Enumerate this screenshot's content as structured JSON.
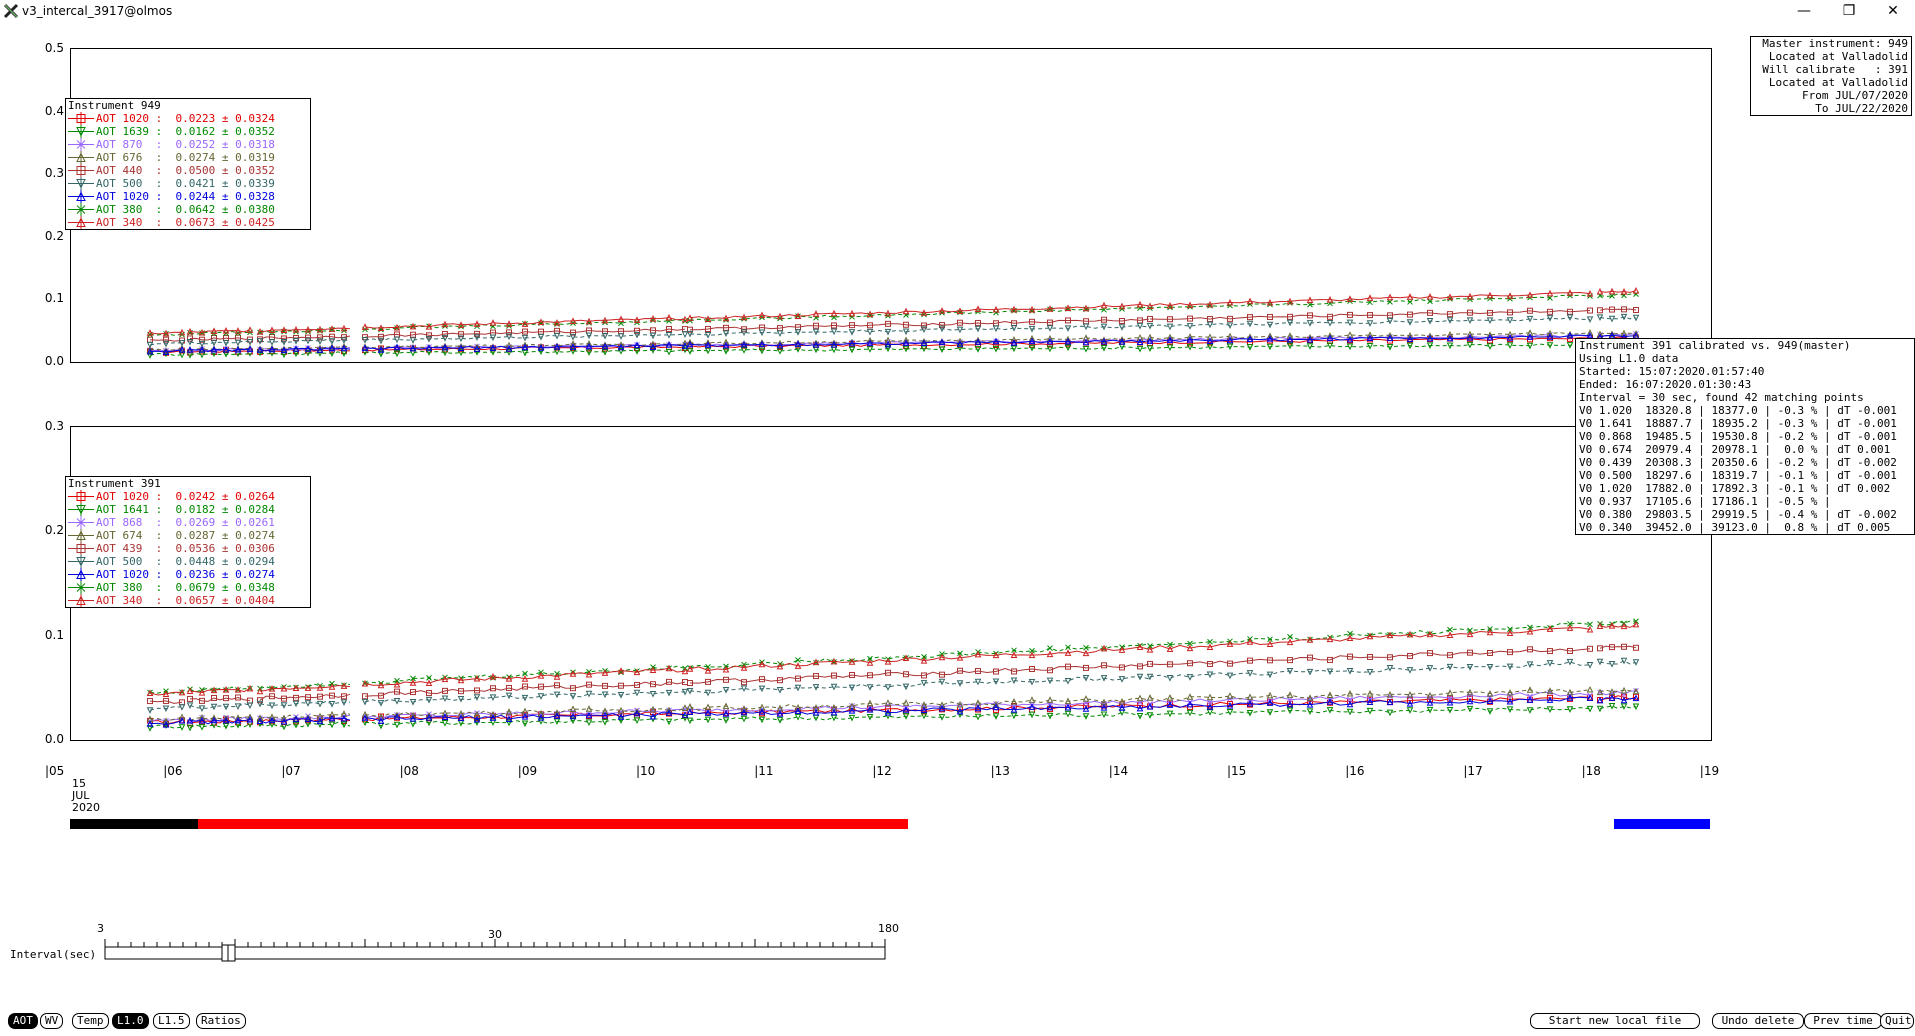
{
  "window": {
    "title": "v3_intercal_3917@olmos",
    "minimize": "—",
    "restore": "❐",
    "close": "✕"
  },
  "top_chart": {
    "yticks": [
      "0.5",
      "0.4",
      "0.3",
      "0.2",
      "0.1",
      "0.0"
    ],
    "legend_title": "Instrument 949",
    "legend": [
      {
        "label": "AOT 1020 :",
        "value": "0.0223 ± 0.0324",
        "color": "#e00000",
        "marker": "square"
      },
      {
        "label": "AOT 1639 :",
        "value": "0.0162 ± 0.0352",
        "color": "#008800",
        "marker": "down"
      },
      {
        "label": "AOT 870  :",
        "value": "0.0252 ± 0.0318",
        "color": "#9966ff",
        "marker": "x"
      },
      {
        "label": "AOT 676  :",
        "value": "0.0274 ± 0.0319",
        "color": "#666633",
        "marker": "up"
      },
      {
        "label": "AOT 440  :",
        "value": "0.0500 ± 0.0352",
        "color": "#aa3333",
        "marker": "square"
      },
      {
        "label": "AOT 500  :",
        "value": "0.0421 ± 0.0339",
        "color": "#336666",
        "marker": "down"
      },
      {
        "label": "AOT 1020 :",
        "value": "0.0244 ± 0.0328",
        "color": "#0000dd",
        "marker": "up"
      },
      {
        "label": "AOT 380  :",
        "value": "0.0642 ± 0.0380",
        "color": "#008800",
        "marker": "x"
      },
      {
        "label": "AOT 340  :",
        "value": "0.0673 ± 0.0425",
        "color": "#cc2222",
        "marker": "up"
      }
    ]
  },
  "bottom_chart": {
    "yticks": [
      "0.3",
      "0.2",
      "0.1",
      "0.0"
    ],
    "legend_title": "Instrument 391",
    "legend": [
      {
        "label": "AOT 1020 :",
        "value": "0.0242 ± 0.0264",
        "color": "#e00000",
        "marker": "square"
      },
      {
        "label": "AOT 1641 :",
        "value": "0.0182 ± 0.0284",
        "color": "#008800",
        "marker": "down"
      },
      {
        "label": "AOT 868  :",
        "value": "0.0269 ± 0.0261",
        "color": "#9966ff",
        "marker": "x"
      },
      {
        "label": "AOT 674  :",
        "value": "0.0287 ± 0.0274",
        "color": "#666633",
        "marker": "up"
      },
      {
        "label": "AOT 439  :",
        "value": "0.0536 ± 0.0306",
        "color": "#aa3333",
        "marker": "square"
      },
      {
        "label": "AOT 500  :",
        "value": "0.0448 ± 0.0294",
        "color": "#336666",
        "marker": "down"
      },
      {
        "label": "AOT 1020 :",
        "value": "0.0236 ± 0.0274",
        "color": "#0000dd",
        "marker": "up"
      },
      {
        "label": "AOT 380  :",
        "value": "0.0679 ± 0.0348",
        "color": "#008800",
        "marker": "x"
      },
      {
        "label": "AOT 340  :",
        "value": "0.0657 ± 0.0404",
        "color": "#cc2222",
        "marker": "up"
      }
    ]
  },
  "xaxis": {
    "ticks": [
      "|05",
      "|06",
      "|07",
      "|08",
      "|09",
      "|10",
      "|11",
      "|12",
      "|13",
      "|14",
      "|15",
      "|16",
      "|17",
      "|18",
      "|19"
    ],
    "date_day": "15",
    "date_month": "JUL",
    "date_year": "2020"
  },
  "master_box": {
    "lines": [
      "Master instrument: 949",
      " Located at Valladolid",
      "Will calibrate   : 391",
      " Located at Valladolid",
      "     From JUL/07/2020",
      "       To JUL/22/2020"
    ]
  },
  "calib_box": {
    "lines": [
      "Instrument 391 calibrated vs. 949(master)",
      "Using L1.0 data",
      "Started: 15:07:2020.01:57:40",
      "Ended: 16:07:2020.01:30:43",
      "Interval = 30 sec, found 42 matching points",
      "V0 1.020  18320.8 | 18377.0 | -0.3 % | dT -0.001",
      "V0 1.641  18887.7 | 18935.2 | -0.3 % | dT -0.001",
      "V0 0.868  19485.5 | 19530.8 | -0.2 % | dT -0.001",
      "V0 0.674  20979.4 | 20978.1 |  0.0 % | dT 0.001",
      "V0 0.439  20308.3 | 20350.6 | -0.2 % | dT -0.002",
      "V0 0.500  18297.6 | 18319.7 | -0.1 % | dT -0.001",
      "V0 1.020  17882.0 | 17892.3 | -0.1 % | dT 0.002",
      "V0 0.937  17105.6 | 17186.1 | -0.5 % |",
      "V0 0.380  29803.5 | 29919.5 | -0.4 % | dT -0.002",
      "V0 0.340  39452.0 | 39123.0 |  0.8 % | dT 0.005"
    ]
  },
  "slider": {
    "label": "Interval(sec)",
    "min_label": "3",
    "mid_label": "30",
    "max_label": "180",
    "value": 30
  },
  "buttons_left": [
    {
      "label": "AOT",
      "active": true
    },
    {
      "label": "WV",
      "active": false
    },
    {
      "label": "Temp",
      "active": false
    },
    {
      "label": "L1.0",
      "active": true
    },
    {
      "label": "L1.5",
      "active": false
    },
    {
      "label": "Ratios",
      "active": false
    }
  ],
  "buttons_right": [
    {
      "label": "Start new local file"
    },
    {
      "label": "Undo delete"
    },
    {
      "label": "Prev time"
    },
    {
      "label": "Quit"
    }
  ],
  "colors": {
    "master_bar": "#000000",
    "calib_bar": "#ff0000",
    "selection_bar": "#0000ff"
  }
}
